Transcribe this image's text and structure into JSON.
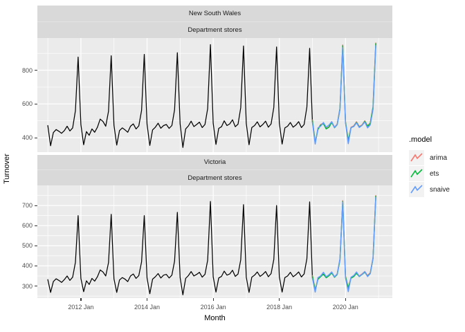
{
  "figure": {
    "background": "#FFFFFF",
    "panel_background": "#EBEBEB",
    "strip_background": "#D9D9D9",
    "grid_color": "#FFFFFF",
    "tick_mark_color": "#333333",
    "tick_label_color": "#4D4D4D"
  },
  "legend": {
    "title": ".model",
    "items": [
      {
        "label": "arima",
        "model": "arima"
      },
      {
        "label": "ets",
        "model": "ets"
      },
      {
        "label": "snaive",
        "model": "snaive"
      }
    ]
  },
  "chart_data": {
    "type": "line",
    "title": "",
    "xlabel": "Month",
    "ylabel": "Turnover",
    "colors": {
      "history": "#000000",
      "arima": "#F8766D",
      "ets": "#00BA38",
      "snaive": "#619CFF"
    },
    "x_unit": "months since 2011 Jan",
    "x_domain": [
      -3.8,
      125
    ],
    "x_ticks": [
      {
        "label": "2012 Jan",
        "m": 12
      },
      {
        "label": "2014 Jan",
        "m": 36
      },
      {
        "label": "2016 Jan",
        "m": 60
      },
      {
        "label": "2018 Jan",
        "m": 84
      },
      {
        "label": "2020 Jan",
        "m": 108
      }
    ],
    "x_minor": [
      0,
      24,
      48,
      72,
      96,
      120
    ],
    "panels": [
      {
        "facet_title": "New South Wales",
        "facet_subtitle": "Department stores",
        "y_domain": [
          314,
          991
        ],
        "y_ticks": [
          {
            "label": "400",
            "v": 400
          },
          {
            "label": "600",
            "v": 600
          },
          {
            "label": "800",
            "v": 800
          }
        ],
        "y_minor": [
          300,
          500,
          700,
          900
        ],
        "series": [
          {
            "name": "history",
            "color_key": "history",
            "start": 0,
            "values": [
              472,
              352,
              430,
              448,
              438,
              426,
              442,
              468,
              440,
              458,
              560,
              878,
              478,
              358,
              436,
              414,
              452,
              432,
              462,
              510,
              496,
              468,
              556,
              886,
              474,
              356,
              442,
              458,
              446,
              432,
              468,
              482,
              452,
              470,
              562,
              894,
              480,
              354,
              446,
              462,
              486,
              456,
              472,
              478,
              455,
              472,
              566,
              904,
              482,
              342,
              452,
              470,
              498,
              466,
              478,
              492,
              460,
              478,
              572,
              952,
              486,
              360,
              455,
              465,
              500,
              472,
              482,
              506,
              465,
              480,
              578,
              944,
              485,
              358,
              460,
              472,
              494,
              464,
              478,
              498,
              462,
              482,
              580,
              938,
              486,
              362,
              458,
              468,
              490,
              462,
              475,
              495,
              460,
              478,
              582,
              930,
              490
            ]
          },
          {
            "name": "arima",
            "color_key": "arima",
            "start": 96,
            "values": [
              505,
              372,
              452,
              478,
              486,
              455,
              465,
              494,
              462,
              480,
              574,
              950,
              496,
              384,
              462,
              470,
              494,
              466,
              476,
              500,
              470,
              488,
              584,
              962
            ]
          },
          {
            "name": "ets",
            "color_key": "ets",
            "start": 96,
            "values": [
              502,
              369,
              449,
              475,
              483,
              452,
              462,
              491,
              459,
              477,
              571,
              946,
              493,
              381,
              459,
              467,
              491,
              463,
              473,
              497,
              467,
              485,
              581,
              958
            ]
          },
          {
            "name": "snaive",
            "color_key": "snaive",
            "start": 96,
            "values": [
              490,
              362,
              458,
              468,
              490,
              462,
              475,
              495,
              460,
              478,
              565,
              934,
              488,
              364,
              460,
              466,
              488,
              460,
              473,
              493,
              458,
              476,
              568,
              946
            ]
          }
        ]
      },
      {
        "facet_title": "Victoria",
        "facet_subtitle": "Department stores",
        "y_domain": [
          240,
          800
        ],
        "y_ticks": [
          {
            "label": "300",
            "v": 300
          },
          {
            "label": "400",
            "v": 400
          },
          {
            "label": "500",
            "v": 500
          },
          {
            "label": "600",
            "v": 600
          },
          {
            "label": "700",
            "v": 700
          }
        ],
        "y_minor": [
          250,
          350,
          450,
          550,
          650,
          750
        ],
        "series": [
          {
            "name": "history",
            "color_key": "history",
            "start": 0,
            "values": [
              332,
              268,
              322,
              336,
              328,
              318,
              332,
              350,
              328,
              344,
              418,
              650,
              338,
              272,
              326,
              308,
              338,
              324,
              346,
              380,
              370,
              350,
              416,
              656,
              336,
              268,
              330,
              342,
              334,
              322,
              350,
              360,
              338,
              352,
              420,
              650,
              340,
              262,
              334,
              346,
              362,
              340,
              354,
              358,
              340,
              354,
              424,
              666,
              342,
              256,
              338,
              352,
              372,
              350,
              358,
              368,
              344,
              358,
              428,
              720,
              346,
              270,
              340,
              348,
              374,
              354,
              360,
              378,
              348,
              360,
              430,
              704,
              344,
              268,
              344,
              354,
              370,
              348,
              358,
              372,
              346,
              362,
              432,
              700,
              345,
              270,
              342,
              350,
              368,
              346,
              356,
              370,
              345,
              360,
              436,
              718,
              338
            ]
          },
          {
            "name": "arima",
            "color_key": "arima",
            "start": 96,
            "values": [
              352,
              282,
              336,
              350,
              362,
              344,
              354,
              368,
              346,
              360,
              432,
              724,
              350,
              292,
              342,
              350,
              366,
              350,
              360,
              372,
              352,
              366,
              440,
              750
            ]
          },
          {
            "name": "ets",
            "color_key": "ets",
            "start": 96,
            "values": [
              350,
              279,
              333,
              347,
              359,
              341,
              351,
              365,
              343,
              357,
              429,
              720,
              347,
              289,
              339,
              347,
              363,
              347,
              357,
              369,
              349,
              363,
              437,
              746
            ]
          },
          {
            "name": "snaive",
            "color_key": "snaive",
            "start": 96,
            "values": [
              338,
              270,
              342,
              350,
              368,
              346,
              356,
              370,
              345,
              360,
              436,
              716,
              340,
              272,
              344,
              352,
              370,
              348,
              358,
              372,
              347,
              362,
              438,
              740
            ]
          }
        ]
      }
    ]
  }
}
